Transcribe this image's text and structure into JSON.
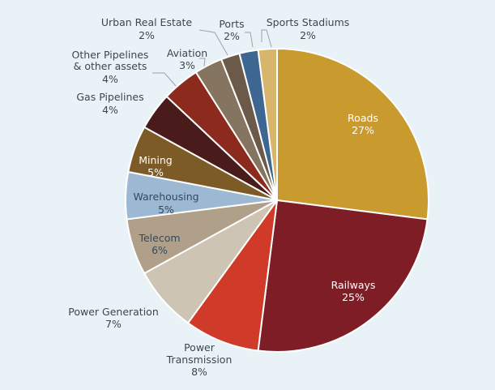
{
  "chart_data": {
    "type": "pie",
    "title": "",
    "start_angle_deg": 0,
    "direction": "clockwise",
    "slices": [
      {
        "label": "Roads",
        "value": 27,
        "pct_label": "27%",
        "color": "#c99a2e"
      },
      {
        "label": "Railways",
        "value": 25,
        "pct_label": "25%",
        "color": "#7f1d26"
      },
      {
        "label": "Power Transmission",
        "value": 8,
        "pct_label": "8%",
        "color": "#d03a28"
      },
      {
        "label": "Power Generation",
        "value": 7,
        "pct_label": "7%",
        "color": "#cdc4b4"
      },
      {
        "label": "Telecom",
        "value": 6,
        "pct_label": "6%",
        "color": "#b0a08a"
      },
      {
        "label": "Warehousing",
        "value": 5,
        "pct_label": "5%",
        "color": "#9db8d2"
      },
      {
        "label": "Mining",
        "value": 5,
        "pct_label": "5%",
        "color": "#7d5b27"
      },
      {
        "label": "Gas Pipelines",
        "value": 4,
        "pct_label": "4%",
        "color": "#4a1b1b"
      },
      {
        "label": "Other Pipelines & other assets",
        "value": 4,
        "pct_label": "4%",
        "color": "#8c2a1e"
      },
      {
        "label": "Aviation",
        "value": 3,
        "pct_label": "3%",
        "color": "#857560"
      },
      {
        "label": "Urban Real Estate",
        "value": 2,
        "pct_label": "2%",
        "color": "#6b5a4a"
      },
      {
        "label": "Ports",
        "value": 2,
        "pct_label": "2%",
        "color": "#3d6690"
      },
      {
        "label": "Sports Stadiums",
        "value": 2,
        "pct_label": "2%",
        "color": "#d7b56a"
      }
    ]
  },
  "labels": {
    "roads": {
      "name": "Roads",
      "pct": "27%"
    },
    "railways": {
      "name": "Railways",
      "pct": "25%"
    },
    "power_transmission": {
      "line1": "Power",
      "line2": "Transmission",
      "pct": "8%"
    },
    "power_generation": {
      "name": "Power Generation",
      "pct": "7%"
    },
    "telecom": {
      "name": "Telecom",
      "pct": "6%"
    },
    "warehousing": {
      "name": "Warehousing",
      "pct": "5%"
    },
    "mining": {
      "name": "Mining",
      "pct": "5%"
    },
    "gas_pipelines": {
      "name": "Gas Pipelines",
      "pct": "4%"
    },
    "other_pipelines": {
      "line1": "Other Pipelines",
      "line2": "& other assets",
      "pct": "4%"
    },
    "aviation": {
      "name": "Aviation",
      "pct": "3%"
    },
    "urban_real_estate": {
      "name": "Urban Real Estate",
      "pct": "2%"
    },
    "ports": {
      "name": "Ports",
      "pct": "2%"
    },
    "sports_stadiums": {
      "name": "Sports Stadiums",
      "pct": "2%"
    }
  }
}
